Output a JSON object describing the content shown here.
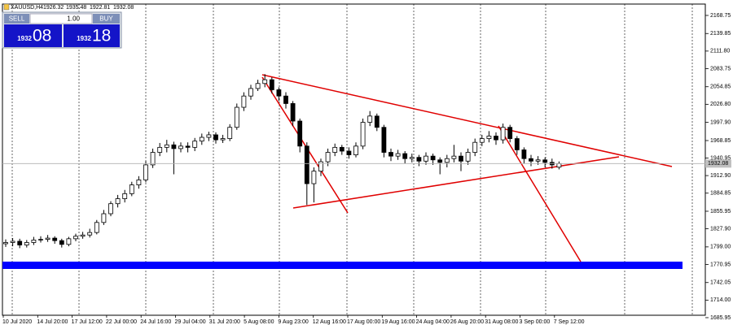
{
  "chart_data": {
    "type": "candlestick",
    "title": "XAUUSD,H4",
    "quote": [
      1926.32,
      1935.48,
      1922.81,
      1932.08
    ],
    "xlabels": [
      "10 Jul 2020",
      "14 Jul 20:00",
      "17 Jul 12:00",
      "22 Jul 00:00",
      "24 Jul 16:00",
      "29 Jul 04:00",
      "31 Jul 20:00",
      "5 Aug 08:00",
      "9 Aug 23:00",
      "12 Aug 16:00",
      "17 Aug 00:00",
      "19 Aug 16:00",
      "24 Aug 04:00",
      "26 Aug 20:00",
      "31 Aug 08:00",
      "3 Sep 00:00",
      "7 Sep 12:00"
    ],
    "open": [
      1804,
      1806,
      1808,
      1802,
      1806,
      1810,
      1811,
      1813,
      1809,
      1803,
      1812,
      1816,
      1818,
      1822,
      1838,
      1852,
      1868,
      1876,
      1884,
      1898,
      1906,
      1930,
      1950,
      1958,
      1962,
      1956,
      1960,
      1958,
      1968,
      1974,
      1978,
      1970,
      1972,
      1990,
      2022,
      2040,
      2052,
      2060,
      2066,
      2050,
      2040,
      2028,
      2000,
      1960,
      1900,
      1920,
      1935,
      1950,
      1958,
      1952,
      1946,
      1960,
      1998,
      2008,
      1990,
      1950,
      1944,
      1948,
      1940,
      1942,
      1936,
      1944,
      1938,
      1934,
      1940,
      1944,
      1936,
      1950,
      1966,
      1972,
      1976,
      1970,
      1990,
      1972,
      1954,
      1940,
      1936,
      1938,
      1934,
      1926.32
    ],
    "high": [
      1811,
      1813,
      1812,
      1810,
      1815,
      1816,
      1818,
      1816,
      1812,
      1815,
      1820,
      1823,
      1828,
      1842,
      1858,
      1872,
      1882,
      1890,
      1903,
      1912,
      1936,
      1956,
      1965,
      1970,
      1967,
      1966,
      1966,
      1973,
      1980,
      1983,
      1982,
      1978,
      1995,
      2028,
      2046,
      2058,
      2066,
      2075,
      2070,
      2054,
      2046,
      2032,
      2004,
      1966,
      1926,
      1940,
      1956,
      1964,
      1962,
      1958,
      1966,
      2004,
      2016,
      2012,
      1994,
      1956,
      1954,
      1952,
      1948,
      1946,
      1950,
      1948,
      1942,
      1946,
      1962,
      1950,
      1956,
      1972,
      1978,
      1984,
      1982,
      1996,
      1994,
      1976,
      1958,
      1946,
      1944,
      1942,
      1940,
      1935.48
    ],
    "low": [
      1799,
      1800,
      1797,
      1798,
      1802,
      1806,
      1807,
      1804,
      1798,
      1800,
      1808,
      1812,
      1814,
      1819,
      1834,
      1848,
      1862,
      1870,
      1880,
      1892,
      1902,
      1925,
      1944,
      1950,
      1915,
      1950,
      1950,
      1952,
      1962,
      1968,
      1964,
      1965,
      1968,
      1986,
      2016,
      2034,
      2048,
      2054,
      2044,
      2032,
      2020,
      1992,
      1950,
      1866,
      1870,
      1912,
      1928,
      1944,
      1946,
      1940,
      1942,
      1955,
      1992,
      1984,
      1942,
      1936,
      1938,
      1932,
      1934,
      1928,
      1930,
      1930,
      1915,
      1926,
      1934,
      1920,
      1930,
      1944,
      1960,
      1966,
      1962,
      1964,
      1966,
      1946,
      1932,
      1928,
      1930,
      1926,
      1924,
      1922.81
    ],
    "close": [
      1806,
      1808,
      1802,
      1806,
      1810,
      1811,
      1813,
      1809,
      1803,
      1812,
      1816,
      1818,
      1822,
      1838,
      1852,
      1868,
      1876,
      1884,
      1898,
      1906,
      1930,
      1950,
      1958,
      1962,
      1956,
      1960,
      1958,
      1968,
      1974,
      1978,
      1970,
      1972,
      1990,
      2022,
      2040,
      2052,
      2060,
      2066,
      2050,
      2040,
      2028,
      2000,
      1960,
      1900,
      1920,
      1935,
      1950,
      1958,
      1952,
      1946,
      1960,
      1998,
      2008,
      1990,
      1950,
      1944,
      1948,
      1940,
      1942,
      1936,
      1944,
      1938,
      1934,
      1940,
      1944,
      1936,
      1950,
      1966,
      1972,
      1976,
      1970,
      1990,
      1972,
      1954,
      1940,
      1936,
      1938,
      1934,
      1930,
      1932.08
    ],
    "ylim": [
      1689.8,
      2186.9
    ],
    "yticks": [
      2168.75,
      2139.85,
      {
        "value": 2111.8,
        "label": "2111.80"
      },
      2083.75,
      2054.85,
      {
        "value": 2026.8,
        "label": "2026.80"
      },
      {
        "value": 1997.9,
        "label": "1997.90"
      },
      1968.85,
      1940.95,
      {
        "value": 1912.9,
        "label": "1912.90"
      },
      1884.85,
      1855.95,
      {
        "value": 1827.9,
        "label": "1827.90"
      },
      {
        "value": 1799,
        "label": "1799.00"
      },
      1770.95,
      1742.05,
      {
        "value": 1714,
        "label": "1714.00"
      },
      1685.95
    ]
  },
  "trade_panel": {
    "sell": "SELL",
    "lot": "1.00",
    "buy": "BUY",
    "sell_big": "1932",
    "sell_small": "08",
    "buy_big": "1932",
    "buy_small": "18"
  }
}
